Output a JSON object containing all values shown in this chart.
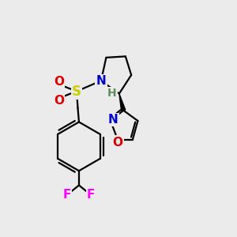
{
  "bg_color": "#ebebeb",
  "bond_color": "#000000",
  "bond_width": 1.6,
  "atoms": {
    "N": {
      "color": "#0000cc",
      "fontsize": 11,
      "fontweight": "bold"
    },
    "S": {
      "color": "#cccc00",
      "fontsize": 12,
      "fontweight": "bold"
    },
    "O": {
      "color": "#dd0000",
      "fontsize": 11,
      "fontweight": "bold"
    },
    "F": {
      "color": "#ff00ff",
      "fontsize": 11,
      "fontweight": "bold"
    },
    "H": {
      "color": "#5f8f5f",
      "fontsize": 10,
      "fontweight": "bold"
    }
  }
}
